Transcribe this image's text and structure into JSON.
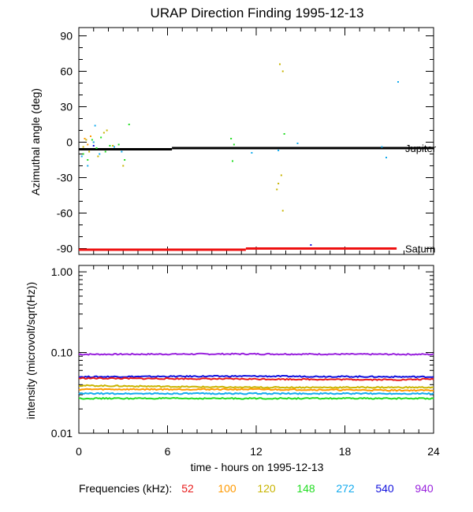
{
  "chart_data": [
    {
      "type": "scatter",
      "title": "URAP Direction Finding  1995-12-13",
      "ylabel": "Azimuthal angle (deg)",
      "xlim": [
        0,
        24
      ],
      "ylim": [
        -95,
        97
      ],
      "y_ticks": [
        "90",
        "60",
        "30",
        "0",
        "-30",
        "-60",
        "-90"
      ],
      "y_tick_values": [
        90,
        60,
        30,
        0,
        -30,
        -60,
        -90
      ],
      "reference_lines": [
        {
          "name": "Jupiter",
          "color": "#000000",
          "segments": [
            [
              0,
              6.3,
              -6
            ],
            [
              6.3,
              24,
              -5
            ]
          ]
        },
        {
          "name": "Saturn",
          "color": "#ee1111",
          "segments": [
            [
              0,
              11.3,
              -91
            ],
            [
              11.3,
              21.5,
              -90
            ]
          ]
        }
      ],
      "series": [
        {
          "name": "52",
          "color": "#e81a1a",
          "points": []
        },
        {
          "name": "100",
          "color": "#ff9900",
          "points": [
            [
              0.4,
              3
            ],
            [
              0.6,
              -2
            ],
            [
              0.8,
              5
            ]
          ]
        },
        {
          "name": "120",
          "color": "#c8b400",
          "points": [
            [
              0.3,
              -4
            ],
            [
              0.5,
              2
            ],
            [
              0.7,
              -8
            ],
            [
              1.0,
              0
            ],
            [
              1.3,
              -12
            ],
            [
              1.7,
              8
            ],
            [
              1.9,
              10
            ],
            [
              2.3,
              -3
            ],
            [
              3.0,
              -20
            ],
            [
              13.6,
              66
            ],
            [
              13.8,
              60
            ],
            [
              13.7,
              -28
            ],
            [
              13.5,
              -35
            ],
            [
              13.4,
              -40
            ],
            [
              13.8,
              -58
            ]
          ]
        },
        {
          "name": "148",
          "color": "#22dd22",
          "points": [
            [
              0.3,
              -10
            ],
            [
              0.6,
              -15
            ],
            [
              0.9,
              2
            ],
            [
              1.2,
              -5
            ],
            [
              1.5,
              4
            ],
            [
              1.8,
              -8
            ],
            [
              2.1,
              -3
            ],
            [
              2.7,
              -2
            ],
            [
              3.1,
              -15
            ],
            [
              3.4,
              15
            ],
            [
              10.3,
              3
            ],
            [
              10.4,
              -16
            ],
            [
              10.5,
              -2
            ],
            [
              13.9,
              7
            ]
          ]
        },
        {
          "name": "272",
          "color": "#11aaee",
          "points": [
            [
              0.2,
              -12
            ],
            [
              0.6,
              -20
            ],
            [
              1.0,
              0
            ],
            [
              1.1,
              14
            ],
            [
              1.4,
              -10
            ],
            [
              2.4,
              -4
            ],
            [
              2.9,
              -8
            ],
            [
              11.7,
              -9
            ],
            [
              13.5,
              -7
            ],
            [
              14.8,
              -1
            ],
            [
              20.5,
              -4
            ],
            [
              20.8,
              -13
            ],
            [
              21.6,
              51
            ]
          ]
        },
        {
          "name": "540",
          "color": "#1111dd",
          "points": [
            [
              1.0,
              -3
            ],
            [
              15.7,
              -87
            ]
          ]
        },
        {
          "name": "940",
          "color": "#9922dd",
          "points": []
        }
      ]
    },
    {
      "type": "line",
      "title": "",
      "xlabel": "time - hours on 1995-12-13",
      "ylabel": "intensity (microvolt/sqrt(Hz))",
      "yscale": "log",
      "xlim": [
        0,
        24
      ],
      "ylim": [
        0.01,
        1.2
      ],
      "x_ticks": [
        "0",
        "6",
        "12",
        "18",
        "24"
      ],
      "x_tick_values": [
        0,
        6,
        12,
        18,
        24
      ],
      "y_ticks": [
        "1.00",
        "0.10",
        "0.01"
      ],
      "y_tick_values": [
        1.0,
        0.1,
        0.01
      ],
      "series": [
        {
          "name": "940",
          "color": "#9922dd",
          "level": 0.095,
          "x": [
            0,
            11,
            22,
            24
          ],
          "values": [
            0.095,
            0.096,
            0.095,
            0.095
          ]
        },
        {
          "name": "540",
          "color": "#1111dd",
          "level": 0.05,
          "x": [
            0,
            11,
            22,
            24
          ],
          "values": [
            0.05,
            0.051,
            0.05,
            0.05
          ]
        },
        {
          "name": "52",
          "color": "#e81a1a",
          "level": 0.047,
          "x": [
            0,
            11,
            22,
            24
          ],
          "values": [
            0.048,
            0.047,
            0.046,
            0.047
          ]
        },
        {
          "name": "120",
          "color": "#c8b400",
          "level": 0.038,
          "x": [
            0,
            11,
            22,
            24
          ],
          "values": [
            0.039,
            0.037,
            0.037,
            0.037
          ]
        },
        {
          "name": "100",
          "color": "#ff9900",
          "level": 0.035,
          "x": [
            0,
            11,
            22,
            24
          ],
          "values": [
            0.035,
            0.035,
            0.034,
            0.034
          ]
        },
        {
          "name": "272",
          "color": "#11aaee",
          "level": 0.031,
          "x": [
            0,
            11,
            22,
            24
          ],
          "values": [
            0.031,
            0.031,
            0.031,
            0.031
          ]
        },
        {
          "name": "148",
          "color": "#22dd22",
          "level": 0.027,
          "x": [
            0,
            11,
            22,
            24
          ],
          "values": [
            0.027,
            0.027,
            0.027,
            0.027
          ]
        }
      ]
    }
  ],
  "legend": {
    "label": "Frequencies (kHz):",
    "items": [
      {
        "text": "52",
        "color": "#e81a1a"
      },
      {
        "text": "100",
        "color": "#ff9900"
      },
      {
        "text": "120",
        "color": "#c8b400"
      },
      {
        "text": "148",
        "color": "#22dd22"
      },
      {
        "text": "272",
        "color": "#11aaee"
      },
      {
        "text": "540",
        "color": "#1111dd"
      },
      {
        "text": "940",
        "color": "#9922dd"
      }
    ]
  }
}
